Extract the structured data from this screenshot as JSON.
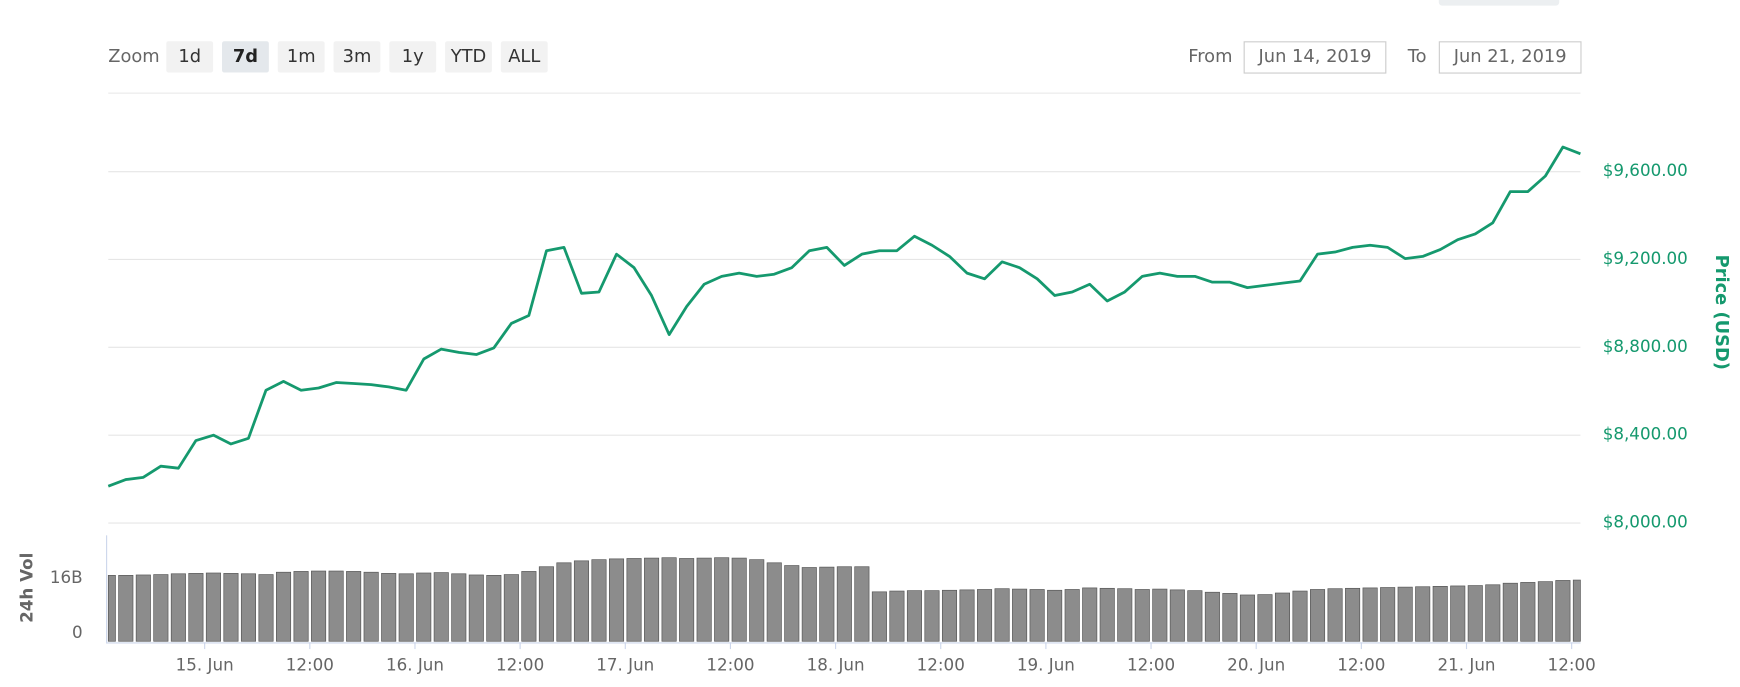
{
  "controls": {
    "zoom_label": "Zoom",
    "zoom_buttons": [
      "1d",
      "7d",
      "1m",
      "3m",
      "1y",
      "YTD",
      "ALL"
    ],
    "from_label": "From",
    "from_value": "Jun 14, 2019",
    "to_label": "To",
    "to_value": "Jun 21, 2019"
  },
  "chart_data": [
    {
      "type": "line",
      "y_axis_label": "Price (USD)",
      "color": "#15996e",
      "x": [
        13,
        15,
        17,
        19,
        21,
        23,
        25,
        27,
        29,
        31,
        33,
        35,
        37,
        39,
        41,
        43,
        45,
        47,
        49,
        51,
        53,
        55,
        57,
        59,
        61,
        63,
        65,
        67,
        69,
        71,
        73,
        75,
        77,
        79,
        81,
        83,
        85,
        87,
        89,
        91,
        93,
        95,
        97,
        99,
        101,
        103,
        105,
        107,
        109,
        111,
        113,
        115,
        117,
        119,
        121,
        123,
        125,
        127,
        129,
        131,
        133,
        135,
        137,
        139,
        141,
        143,
        145,
        147,
        149,
        151,
        153,
        155,
        157,
        159,
        161,
        163,
        165,
        167,
        169,
        171,
        173,
        175,
        177,
        179,
        181
      ],
      "values": [
        8168,
        8198,
        8208,
        8259,
        8250,
        8376,
        8400,
        8360,
        8386,
        8605,
        8645,
        8605,
        8615,
        8640,
        8635,
        8630,
        8620,
        8605,
        8747,
        8792,
        8777,
        8767,
        8797,
        8909,
        8945,
        9240,
        9255,
        9046,
        9052,
        9224,
        9163,
        9036,
        8858,
        8986,
        9087,
        9123,
        9138,
        9123,
        9133,
        9163,
        9240,
        9255,
        9173,
        9224,
        9240,
        9240,
        9306,
        9265,
        9214,
        9138,
        9112,
        9189,
        9163,
        9112,
        9036,
        9052,
        9087,
        9011,
        9052,
        9123,
        9138,
        9123,
        9123,
        9097,
        9097,
        9072,
        9082,
        9092,
        9102,
        9224,
        9234,
        9255,
        9265,
        9255,
        9204,
        9214,
        9245,
        9290,
        9316,
        9367,
        9509,
        9509,
        9580,
        9712,
        9681
      ],
      "xlim": [
        13,
        181
      ],
      "ylim": [
        8000,
        9960
      ],
      "yticks": [
        {
          "value": 8000,
          "label": "$8,000.00"
        },
        {
          "value": 8400,
          "label": "$8,400.00"
        },
        {
          "value": 8800,
          "label": "$8,800.00"
        },
        {
          "value": 9200,
          "label": "$9,200.00"
        },
        {
          "value": 9600,
          "label": "$9,600.00"
        }
      ],
      "grid": true
    },
    {
      "type": "bar",
      "y_axis_label": "24h Vol",
      "color": "#8c8c8c",
      "x": [
        13,
        15,
        17,
        19,
        21,
        23,
        25,
        27,
        29,
        31,
        33,
        35,
        37,
        39,
        41,
        43,
        45,
        47,
        49,
        51,
        53,
        55,
        57,
        59,
        61,
        63,
        65,
        67,
        69,
        71,
        73,
        75,
        77,
        79,
        81,
        83,
        85,
        87,
        89,
        91,
        93,
        95,
        97,
        99,
        101,
        103,
        105,
        107,
        109,
        111,
        113,
        115,
        117,
        119,
        121,
        123,
        125,
        127,
        129,
        131,
        133,
        135,
        137,
        139,
        141,
        143,
        145,
        147,
        149,
        151,
        153,
        155,
        157,
        159,
        161,
        163,
        165,
        167,
        169,
        171,
        173,
        175,
        177,
        179,
        181
      ],
      "values": [
        16.8,
        16.8,
        16.9,
        17.0,
        17.2,
        17.3,
        17.4,
        17.3,
        17.2,
        17.0,
        17.6,
        17.8,
        17.9,
        17.9,
        17.8,
        17.6,
        17.3,
        17.2,
        17.4,
        17.5,
        17.2,
        16.9,
        16.8,
        17.0,
        17.8,
        19.0,
        20.0,
        20.5,
        20.8,
        21.0,
        21.1,
        21.2,
        21.3,
        21.1,
        21.2,
        21.3,
        21.2,
        20.8,
        20.0,
        19.3,
        18.8,
        18.9,
        19.0,
        19.0,
        12.6,
        12.8,
        12.9,
        12.9,
        13.0,
        13.1,
        13.2,
        13.4,
        13.3,
        13.2,
        13.0,
        13.2,
        13.6,
        13.5,
        13.4,
        13.2,
        13.3,
        13.1,
        12.9,
        12.5,
        12.2,
        11.8,
        11.9,
        12.3,
        12.8,
        13.2,
        13.4,
        13.5,
        13.6,
        13.7,
        13.8,
        13.9,
        14.0,
        14.1,
        14.2,
        14.4,
        14.8,
        15.0,
        15.2,
        15.5,
        15.6
      ],
      "xlim": [
        13,
        181
      ],
      "ylim": [
        0,
        27
      ],
      "yticks": [
        0,
        {
          "value": 16,
          "label": "16B"
        }
      ],
      "xticks": [
        {
          "value": 24,
          "label": "15. Jun"
        },
        {
          "value": 36,
          "label": "12:00"
        },
        {
          "value": 48,
          "label": "16. Jun"
        },
        {
          "value": 60,
          "label": "12:00"
        },
        {
          "value": 72,
          "label": "17. Jun"
        },
        {
          "value": 84,
          "label": "12:00"
        },
        {
          "value": 96,
          "label": "18. Jun"
        },
        {
          "value": 108,
          "label": "12:00"
        },
        {
          "value": 120,
          "label": "19. Jun"
        },
        {
          "value": 132,
          "label": "12:00"
        },
        {
          "value": 144,
          "label": "20. Jun"
        },
        {
          "value": 156,
          "label": "12:00"
        },
        {
          "value": 168,
          "label": "21. Jun"
        },
        {
          "value": 180,
          "label": "12:00"
        }
      ]
    }
  ]
}
